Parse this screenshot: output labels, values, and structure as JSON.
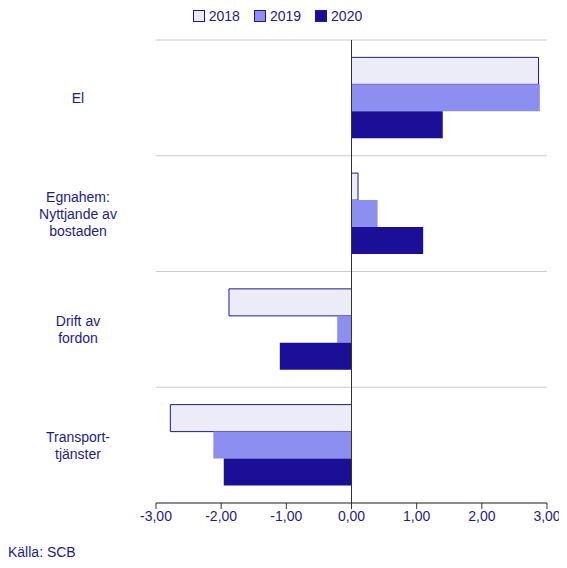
{
  "chart_data": {
    "type": "bar",
    "orientation": "horizontal",
    "categories": [
      "El",
      "Egnahem:\nNyttjande av\nbostaden",
      "Drift av\nfordon",
      "Transport-\ntjänster"
    ],
    "series": [
      {
        "name": "2018",
        "color": "#ececf8",
        "values": [
          2.87,
          0.1,
          -1.88,
          -2.78
        ]
      },
      {
        "name": "2019",
        "color": "#8c8ff0",
        "values": [
          2.89,
          0.4,
          -0.22,
          -2.12
        ]
      },
      {
        "name": "2020",
        "color": "#1a0f96",
        "values": [
          1.4,
          1.1,
          -1.1,
          -1.96
        ]
      }
    ],
    "xlim": [
      -3,
      3
    ],
    "xticks": [
      {
        "value": -3,
        "label": "-3,00"
      },
      {
        "value": -2,
        "label": "-2,00"
      },
      {
        "value": -1,
        "label": "-1,00"
      },
      {
        "value": 0,
        "label": "0,00"
      },
      {
        "value": 1,
        "label": "1,00"
      },
      {
        "value": 2,
        "label": "2,00"
      },
      {
        "value": 3,
        "label": "3,00"
      }
    ],
    "grid": true,
    "legend": "top",
    "source": "Källa: SCB"
  }
}
